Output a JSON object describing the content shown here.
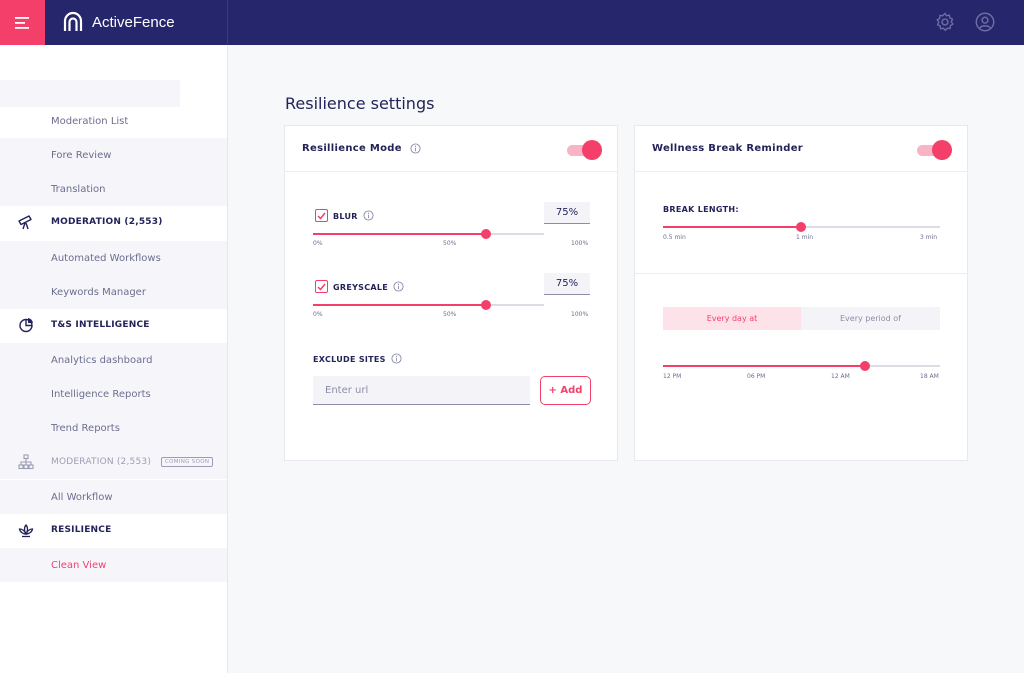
{
  "header": {
    "brand": "ActiveFence",
    "menu_icon": "hamburger-icon",
    "settings_icon": "gear-icon",
    "profile_icon": "user-circle-icon"
  },
  "sidebar": {
    "items": [
      {
        "label": "Moderation List",
        "kind": "sub"
      },
      {
        "label": "Fore Review",
        "kind": "sub"
      },
      {
        "label": "Translation",
        "kind": "sub"
      },
      {
        "label": "MODERATION (2,553)",
        "kind": "section",
        "icon": "telescope-icon"
      },
      {
        "label": "Automated Workflows",
        "kind": "sub"
      },
      {
        "label": "Keywords Manager",
        "kind": "sub"
      },
      {
        "label": "T&S INTELLIGENCE",
        "kind": "section",
        "icon": "pie-chart-icon"
      },
      {
        "label": "Analytics dashboard",
        "kind": "sub"
      },
      {
        "label": "Intelligence Reports",
        "kind": "sub"
      },
      {
        "label": "Trend Reports",
        "kind": "sub"
      },
      {
        "label": "MODERATION (2,553)",
        "kind": "section",
        "icon": "hierarchy-icon",
        "badge": "COMING SOON"
      },
      {
        "label": "All Workflow",
        "kind": "sub"
      },
      {
        "label": "RESILIENCE",
        "kind": "section",
        "icon": "lotus-icon"
      },
      {
        "label": "Clean View",
        "kind": "sub",
        "active": true
      }
    ]
  },
  "page": {
    "title": "Resilience settings"
  },
  "resilience_card": {
    "title": "Resillience Mode",
    "toggle_on": true,
    "blur": {
      "label": "BLUR",
      "checked": true,
      "value": "75%",
      "level": 0.75,
      "ticks": [
        "0%",
        "50%",
        "100%"
      ]
    },
    "greyscale": {
      "label": "GREYSCALE",
      "checked": true,
      "value": "75%",
      "level": 0.75,
      "ticks": [
        "0%",
        "50%",
        "100%"
      ]
    },
    "exclude": {
      "label": "EXCLUDE SITES",
      "placeholder": "Enter url",
      "add_label": "+ Add"
    }
  },
  "wellness_card": {
    "title": "Wellness Break Reminder",
    "toggle_on": true,
    "break_length": {
      "label": "BREAK LENGTH:",
      "ticks": [
        "0.5 min",
        "1 min",
        "3 min"
      ],
      "selected": "1 min"
    },
    "schedule": {
      "options": [
        "Every day at",
        "Every period of"
      ],
      "selected": "Every day at",
      "ticks": [
        "12 PM",
        "06 PM",
        "12 AM",
        "18 AM"
      ],
      "level": 0.73
    }
  },
  "colors": {
    "accent": "#f43f6b",
    "navy": "#26266c",
    "text": "#23235a"
  }
}
